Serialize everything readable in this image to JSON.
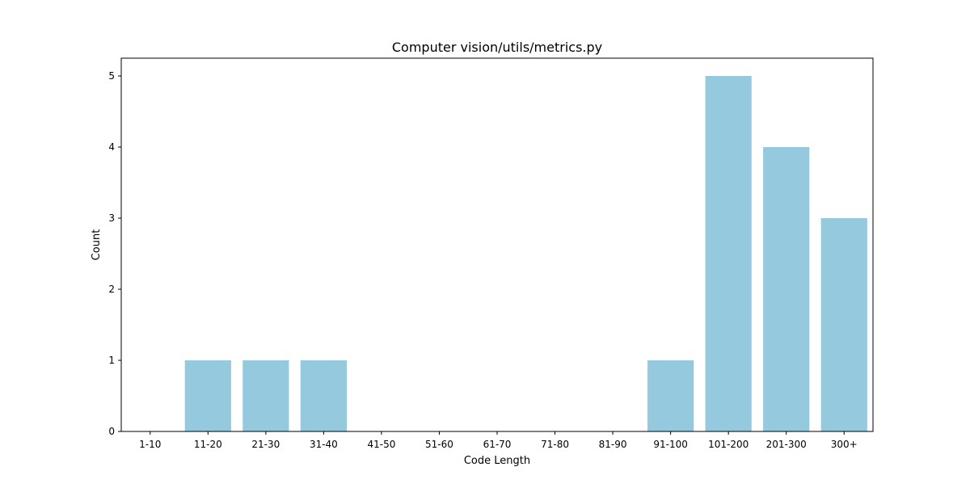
{
  "chart_data": {
    "type": "bar",
    "title": "Computer vision/utils/metrics.py",
    "xlabel": "Code Length",
    "ylabel": "Count",
    "categories": [
      "1-10",
      "11-20",
      "21-30",
      "31-40",
      "41-50",
      "51-60",
      "61-70",
      "71-80",
      "81-90",
      "91-100",
      "101-200",
      "201-300",
      "300+"
    ],
    "values": [
      0,
      1,
      1,
      1,
      0,
      0,
      0,
      0,
      0,
      1,
      5,
      4,
      3
    ],
    "ylim": [
      0,
      5.25
    ],
    "yticks": [
      0,
      1,
      2,
      3,
      4,
      5
    ],
    "bar_color": "#95c9de",
    "grid": false,
    "legend": "none"
  }
}
